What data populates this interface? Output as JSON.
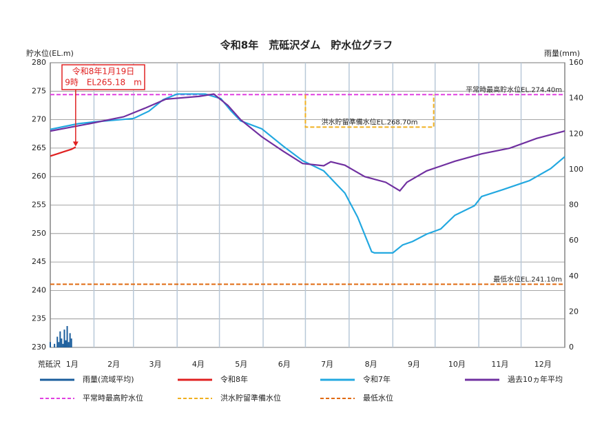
{
  "chart_data": {
    "type": "line",
    "title": "令和8年　荒砥沢ダム　貯水位グラフ",
    "y_label": "貯水位(EL.m)",
    "y2_label": "雨量(mm)",
    "x_label": "荒砥沢",
    "xlim": [
      0,
      365
    ],
    "xticks": [
      {
        "value": 0,
        "label": "1月"
      },
      {
        "value": 31,
        "label": "2月"
      },
      {
        "value": 59,
        "label": "3月"
      },
      {
        "value": 90,
        "label": "4月"
      },
      {
        "value": 120,
        "label": "5月"
      },
      {
        "value": 151,
        "label": "6月"
      },
      {
        "value": 181,
        "label": "7月"
      },
      {
        "value": 212,
        "label": "8月"
      },
      {
        "value": 243,
        "label": "9月"
      },
      {
        "value": 273,
        "label": "10月"
      },
      {
        "value": 304,
        "label": "11月"
      },
      {
        "value": 334,
        "label": "12月"
      }
    ],
    "ylim": [
      230,
      280
    ],
    "yticks": [
      230,
      235,
      240,
      245,
      250,
      255,
      260,
      265,
      270,
      275,
      280
    ],
    "y2lim": [
      0,
      160
    ],
    "y2ticks": [
      0,
      20,
      40,
      60,
      80,
      100,
      120,
      140,
      160
    ],
    "grid": true,
    "series": [
      {
        "name": "雨量(流域平均)",
        "type": "bar",
        "axis": "y2",
        "color": "#1a5d9c",
        "x": [
          0,
          3,
          5,
          6,
          7,
          8,
          9,
          10,
          11,
          12,
          13,
          14,
          15
        ],
        "values": [
          3,
          2,
          6,
          3,
          9,
          5,
          2,
          10,
          4,
          12,
          3,
          8,
          5
        ]
      },
      {
        "name": "令和8年",
        "type": "line",
        "color": "#e02020",
        "x": [
          0,
          5,
          10,
          15,
          18
        ],
        "values": [
          263.6,
          264.0,
          264.4,
          264.8,
          265.18
        ]
      },
      {
        "name": "令和7年",
        "type": "line",
        "color": "#22a8e0",
        "x": [
          0,
          10,
          20,
          31,
          45,
          59,
          70,
          80,
          90,
          100,
          110,
          121,
          128,
          135,
          150,
          165,
          179,
          194,
          209,
          218,
          228,
          230,
          243,
          250,
          257,
          267,
          277,
          287,
          301,
          306,
          321,
          340,
          355,
          365
        ],
        "values": [
          268.3,
          268.8,
          269.3,
          269.6,
          269.9,
          270.2,
          271.5,
          273.5,
          274.5,
          274.5,
          274.5,
          273.7,
          271.6,
          269.8,
          268.4,
          265.4,
          262.8,
          261,
          257.1,
          252.9,
          246.8,
          246.6,
          246.6,
          248,
          248.6,
          249.9,
          250.8,
          253.2,
          254.9,
          256.5,
          257.7,
          259.3,
          261.4,
          263.5
        ]
      },
      {
        "name": "過去10ヵ年平均",
        "type": "line",
        "color": "#7030a0",
        "x": [
          0,
          28,
          52,
          67,
          82,
          106,
          116,
          126,
          135,
          150,
          165,
          179,
          194,
          199,
          209,
          223,
          238,
          248,
          253,
          267,
          287,
          306,
          326,
          345,
          365
        ],
        "values": [
          268,
          269.3,
          270.5,
          272,
          273.6,
          274.1,
          274.5,
          272.5,
          270,
          267,
          264.5,
          262.3,
          261.9,
          262.6,
          262,
          260,
          259,
          257.5,
          259,
          261,
          262.7,
          264,
          265,
          266.7,
          268
        ]
      }
    ],
    "reference_lines": [
      {
        "name": "平常時最高貯水位",
        "label": "平常時最高貯水位EL.274.40m",
        "value": 274.4,
        "color": "#e040e0"
      },
      {
        "name": "洪水貯留準備水位",
        "label": "洪水貯留準備水位EL.268.70m",
        "value": 268.7,
        "color": "#f0b020",
        "x": [
          181,
          272
        ]
      },
      {
        "name": "最低水位",
        "label": "最低水位EL.241.10m",
        "value": 241.1,
        "color": "#e06a10"
      }
    ],
    "annotation": [
      "令和8年1月19日",
      "9時　EL265.18　m"
    ]
  }
}
